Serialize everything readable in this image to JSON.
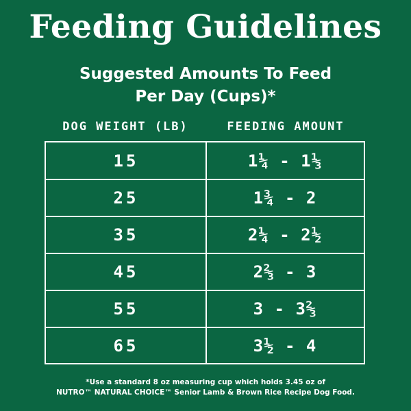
{
  "title": "Feeding Guidelines",
  "subtitle_line1": "Suggested Amounts To Feed",
  "subtitle_line2": "Per Day (Cups)*",
  "columns": {
    "weight": "DOG WEIGHT (LB)",
    "amount": "FEEDING AMOUNT"
  },
  "rows": [
    {
      "weight": "15",
      "amount": "1¼ - 1⅓"
    },
    {
      "weight": "25",
      "amount": "1¾ - 2"
    },
    {
      "weight": "35",
      "amount": "2¼ - 2½"
    },
    {
      "weight": "45",
      "amount": "2⅔ - 3"
    },
    {
      "weight": "55",
      "amount": "3 - 3⅔"
    },
    {
      "weight": "65",
      "amount": "3½ - 4"
    }
  ],
  "footnote_line1": "*Use a standard 8 oz measuring cup which holds 3.45 oz of",
  "footnote_line2": "NUTRO™ NATURAL CHOICE™ Senior Lamb & Brown Rice Recipe Dog Food.",
  "colors": {
    "background": "#0b6642",
    "text": "#ffffff"
  }
}
